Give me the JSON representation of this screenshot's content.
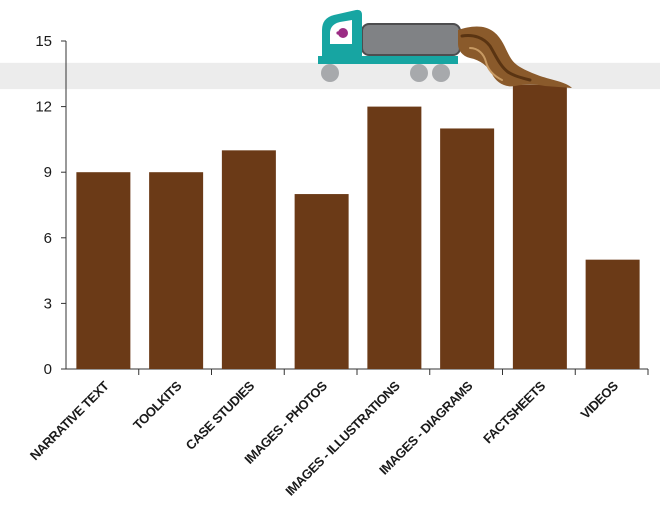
{
  "chart_data": {
    "type": "bar",
    "categories": [
      "NARRATIVE TEXT",
      "TOOLKITS",
      "CASE STUDIES",
      "IMAGES - PHOTOS",
      "IMAGES - ILLUSTRATIONS",
      "IMAGES - DIAGRAMS",
      "FACTSHEETS",
      "VIDEOS"
    ],
    "values": [
      9,
      9,
      10,
      8,
      12,
      11,
      13,
      5
    ],
    "ylim": [
      0,
      15
    ],
    "yticks": [
      0,
      3,
      6,
      9,
      12,
      15
    ],
    "highlight_band": [
      12.8,
      14
    ],
    "grid": false,
    "legend": "none",
    "colors": {
      "bar": "#6b3a17",
      "band": "#ececec",
      "axis": "#333333",
      "truck_cab": "#17a5a2",
      "truck_tank": "#808285",
      "truck_wheel": "#a7a9ac",
      "truck_window": "#ffffff",
      "truck_driver": "#9b2c84",
      "spill": "#8a5a2b",
      "spill_dark": "#5a3412"
    }
  }
}
